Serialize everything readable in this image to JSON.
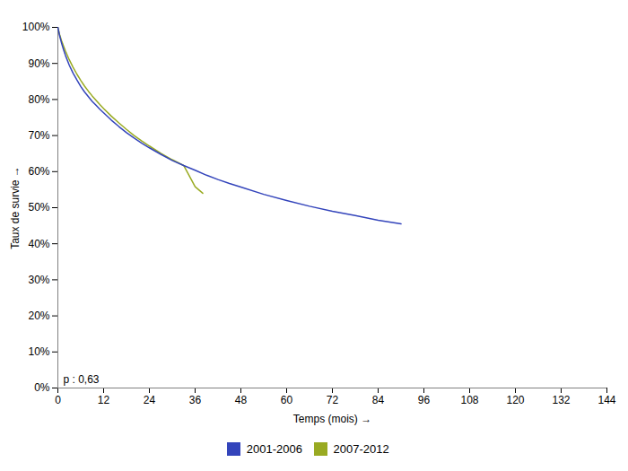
{
  "chart_data": {
    "type": "line",
    "xlabel": "Temps (mois)",
    "ylabel": "Taux de survie",
    "xlim": [
      0,
      144
    ],
    "ylim": [
      0,
      1.0
    ],
    "xticks": [
      0,
      12,
      24,
      36,
      48,
      60,
      72,
      84,
      96,
      108,
      120,
      132,
      144
    ],
    "yticks": [
      {
        "value": 0.0,
        "label": "0%"
      },
      {
        "value": 0.1,
        "label": "10%"
      },
      {
        "value": 0.2,
        "label": "20%"
      },
      {
        "value": 0.3,
        "label": "30%"
      },
      {
        "value": 0.4,
        "label": "40%"
      },
      {
        "value": 0.5,
        "label": "50%"
      },
      {
        "value": 0.6,
        "label": "60%"
      },
      {
        "value": 0.7,
        "label": "70%"
      },
      {
        "value": 0.8,
        "label": "80%"
      },
      {
        "value": 0.9,
        "label": "90%"
      },
      {
        "value": 1.0,
        "label": "100%"
      }
    ],
    "annotations": [
      "p : 0,63"
    ],
    "grid": false,
    "legend": "bottom",
    "series": [
      {
        "name": "2001-2006",
        "color": "#3344bb",
        "x": [
          0,
          0.5,
          1,
          1.5,
          2,
          3,
          4,
          5,
          6,
          7,
          8,
          9,
          10,
          11,
          12,
          14,
          16,
          18,
          20,
          22,
          24,
          27,
          30,
          33,
          36,
          39,
          42,
          45,
          48,
          54,
          60,
          66,
          72,
          78,
          84,
          90
        ],
        "values": [
          1.0,
          0.975,
          0.955,
          0.938,
          0.922,
          0.895,
          0.873,
          0.854,
          0.836,
          0.821,
          0.808,
          0.795,
          0.784,
          0.773,
          0.763,
          0.743,
          0.725,
          0.708,
          0.693,
          0.679,
          0.666,
          0.648,
          0.631,
          0.617,
          0.604,
          0.59,
          0.578,
          0.567,
          0.557,
          0.537,
          0.52,
          0.504,
          0.49,
          0.478,
          0.465,
          0.455
        ]
      },
      {
        "name": "2007-2012",
        "color": "#99aa22",
        "x": [
          0,
          0.5,
          1,
          1.5,
          2,
          3,
          4,
          5,
          6,
          7,
          8,
          9,
          10,
          11,
          12,
          14,
          16,
          18,
          20,
          22,
          24,
          27,
          30,
          33,
          36,
          38
        ],
        "values": [
          1.0,
          0.978,
          0.962,
          0.948,
          0.934,
          0.91,
          0.889,
          0.87,
          0.853,
          0.837,
          0.823,
          0.81,
          0.798,
          0.786,
          0.775,
          0.754,
          0.735,
          0.717,
          0.7,
          0.685,
          0.671,
          0.651,
          0.633,
          0.617,
          0.558,
          0.54
        ]
      }
    ]
  }
}
